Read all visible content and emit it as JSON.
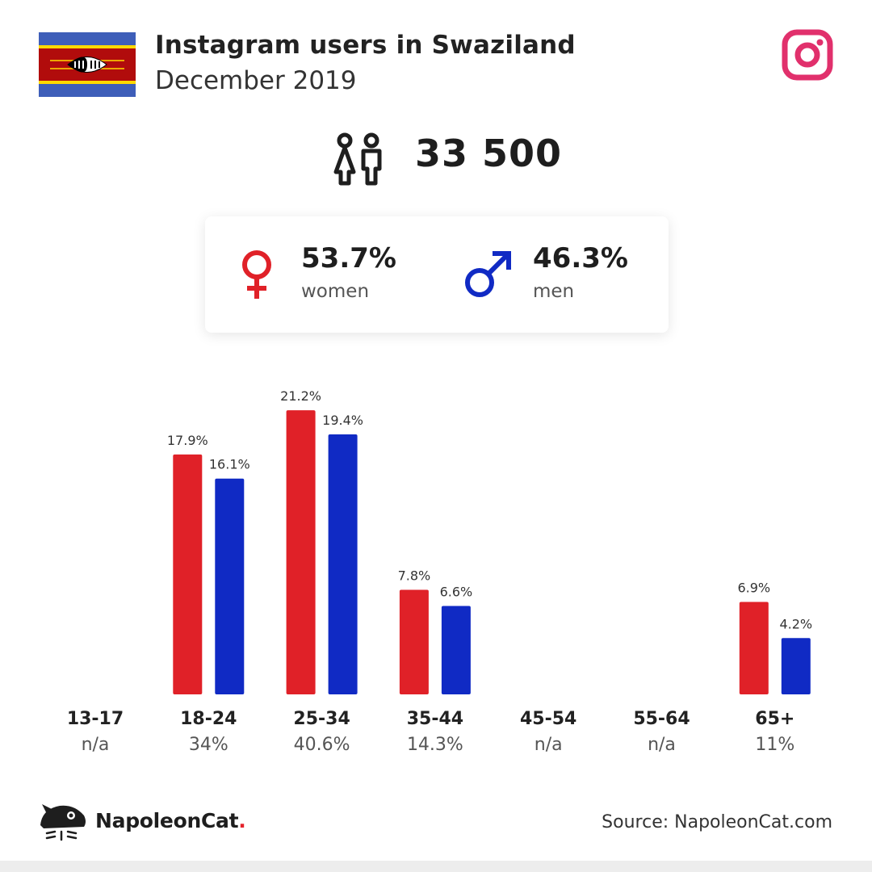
{
  "header": {
    "title": "Instagram users in Swaziland",
    "subtitle": "December 2019",
    "flag_icon": "swaziland-flag-icon",
    "platform_icon": "instagram-icon"
  },
  "total": {
    "icon": "users-icon",
    "value": "33 500"
  },
  "gender": {
    "female": {
      "icon": "female-symbol-icon",
      "percent": "53.7%",
      "label": "women"
    },
    "male": {
      "icon": "male-symbol-icon",
      "percent": "46.3%",
      "label": "men"
    }
  },
  "colors": {
    "women": "#e02128",
    "men": "#102ac4",
    "instagram": "#e1306c"
  },
  "chart_data": {
    "type": "bar",
    "categories": [
      "13-17",
      "18-24",
      "25-34",
      "35-44",
      "45-54",
      "55-64",
      "65+"
    ],
    "category_totals": [
      "n/a",
      "34%",
      "40.6%",
      "14.3%",
      "n/a",
      "n/a",
      "11%"
    ],
    "series": [
      {
        "values": [
          null,
          17.9,
          21.2,
          7.8,
          null,
          null,
          6.9
        ],
        "labels": [
          "",
          "17.9%",
          "21.2%",
          "7.8%",
          "",
          "",
          "6.9%"
        ],
        "color": "#e02128"
      },
      {
        "values": [
          null,
          16.1,
          19.4,
          6.6,
          null,
          null,
          4.2
        ],
        "labels": [
          "",
          "16.1%",
          "19.4%",
          "6.6%",
          "",
          "",
          "4.2%"
        ],
        "color": "#102ac4"
      }
    ],
    "ylim": [
      0,
      24
    ],
    "grid": false,
    "legend": "none"
  },
  "footer": {
    "logo_icon": "napoleoncat-logo-icon",
    "brand_name": "NapoleonCat",
    "brand_dot": ".",
    "source": "Source: NapoleonCat.com"
  }
}
